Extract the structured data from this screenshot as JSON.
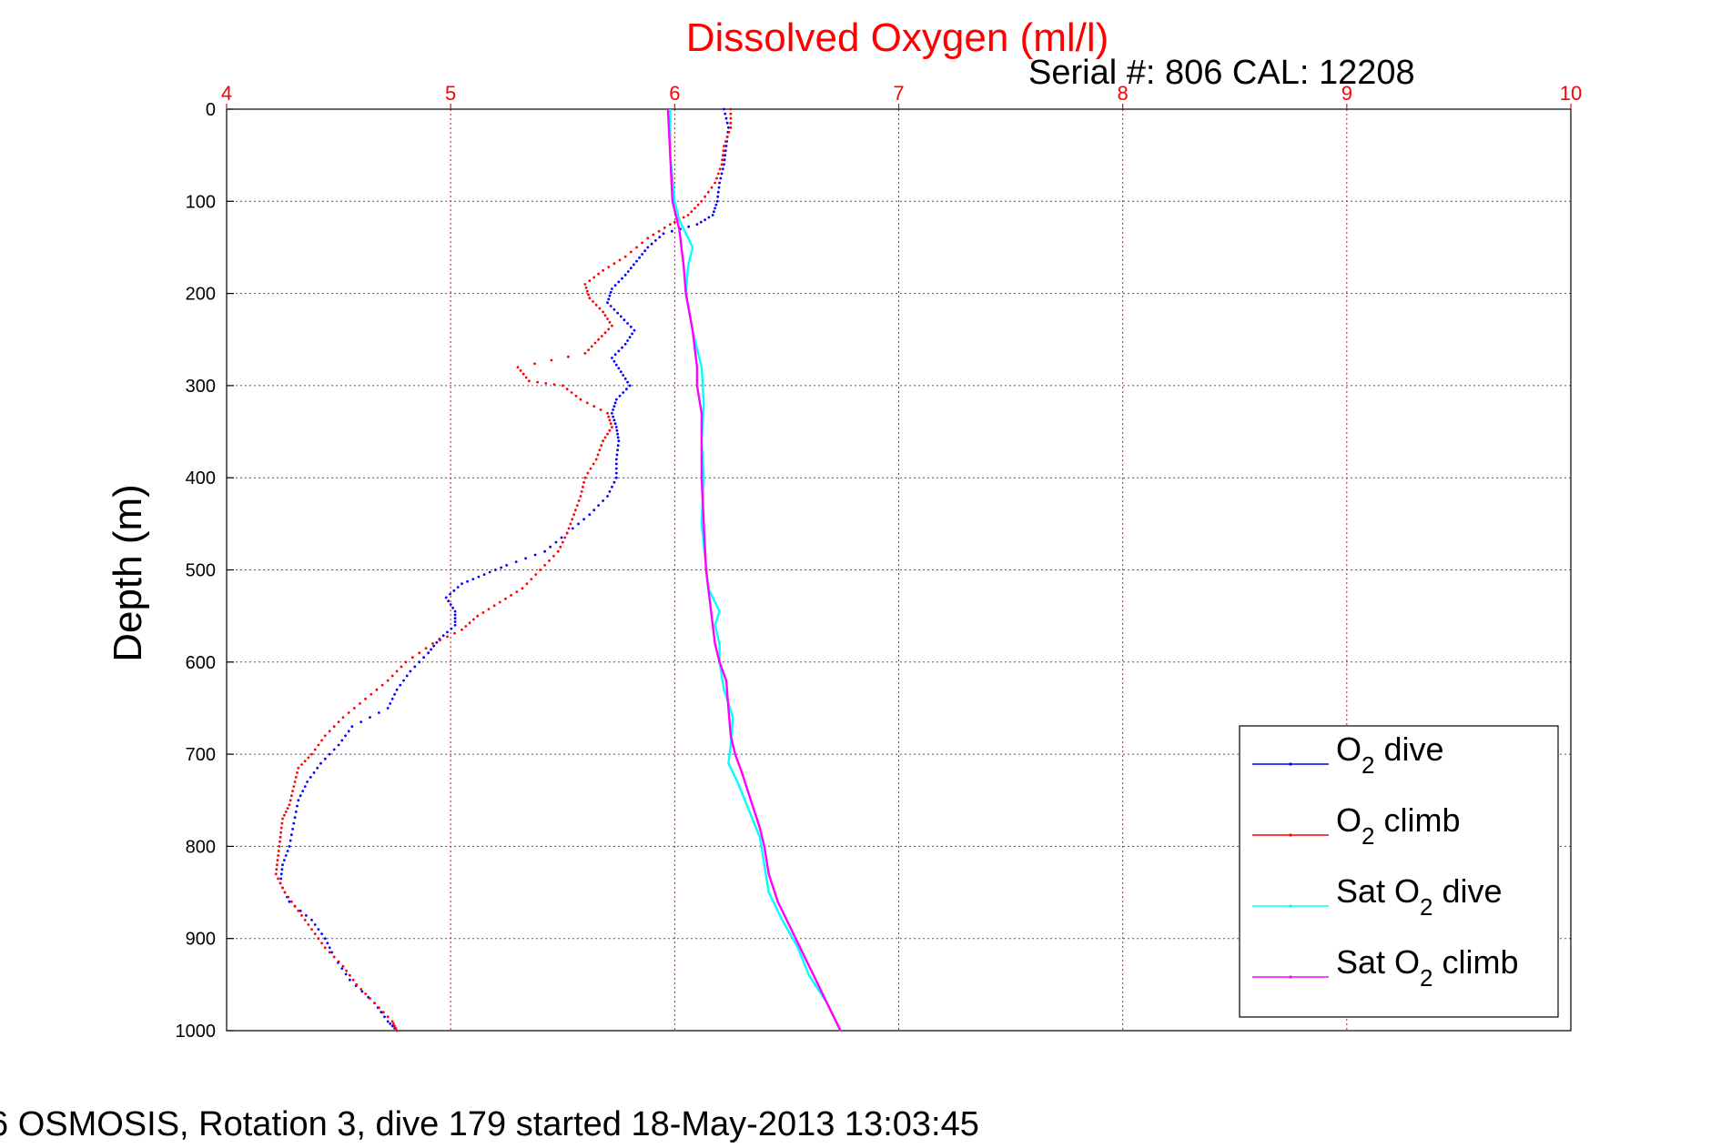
{
  "chart_data": {
    "type": "scatter",
    "title": "Dissolved Oxygen (ml/l)",
    "serial_label": "Serial #: 806  CAL: 12208",
    "caption": "6 OSMOSIS, Rotation 3, dive 179 started 18-May-2013 13:03:45",
    "ylabel": "Depth (m)",
    "xlabel": "",
    "xlim": [
      4,
      10
    ],
    "ylim": [
      0,
      1000
    ],
    "y_reversed": true,
    "x_axis_position": "top",
    "grid": true,
    "x_ticks": [
      "4",
      "5",
      "6",
      "7",
      "8",
      "9",
      "10"
    ],
    "y_ticks": [
      "0",
      "100",
      "200",
      "300",
      "400",
      "500",
      "600",
      "700",
      "800",
      "900",
      "1000"
    ],
    "legend_position": "bottom-right",
    "legend": [
      {
        "main": "O",
        "sub": "2",
        "rest": " dive",
        "color": "#0000ff"
      },
      {
        "main": "O",
        "sub": "2",
        "rest": " climb",
        "color": "#ff0000"
      },
      {
        "main": "Sat O",
        "sub": "2",
        "rest": " dive",
        "color": "#00ffff"
      },
      {
        "main": "Sat O",
        "sub": "2",
        "rest": " climb",
        "color": "#ff00ff"
      }
    ],
    "series": [
      {
        "name": "O2 dive",
        "color": "#0000ff",
        "style": "dots",
        "points": [
          [
            6.22,
            0
          ],
          [
            6.24,
            20
          ],
          [
            6.23,
            40
          ],
          [
            6.22,
            60
          ],
          [
            6.2,
            80
          ],
          [
            6.19,
            100
          ],
          [
            6.17,
            115
          ],
          [
            6.1,
            125
          ],
          [
            5.95,
            135
          ],
          [
            5.88,
            150
          ],
          [
            5.83,
            165
          ],
          [
            5.78,
            180
          ],
          [
            5.72,
            195
          ],
          [
            5.7,
            210
          ],
          [
            5.76,
            225
          ],
          [
            5.82,
            240
          ],
          [
            5.78,
            255
          ],
          [
            5.72,
            270
          ],
          [
            5.76,
            285
          ],
          [
            5.8,
            300
          ],
          [
            5.74,
            315
          ],
          [
            5.72,
            330
          ],
          [
            5.74,
            345
          ],
          [
            5.75,
            360
          ],
          [
            5.74,
            380
          ],
          [
            5.74,
            400
          ],
          [
            5.7,
            420
          ],
          [
            5.62,
            440
          ],
          [
            5.52,
            460
          ],
          [
            5.42,
            480
          ],
          [
            5.25,
            495
          ],
          [
            5.15,
            505
          ],
          [
            5.05,
            515
          ],
          [
            4.98,
            530
          ],
          [
            5.02,
            545
          ],
          [
            5.02,
            560
          ],
          [
            4.95,
            575
          ],
          [
            4.9,
            590
          ],
          [
            4.82,
            610
          ],
          [
            4.76,
            630
          ],
          [
            4.72,
            650
          ],
          [
            4.56,
            670
          ],
          [
            4.5,
            690
          ],
          [
            4.42,
            710
          ],
          [
            4.36,
            730
          ],
          [
            4.32,
            750
          ],
          [
            4.3,
            775
          ],
          [
            4.28,
            800
          ],
          [
            4.25,
            820
          ],
          [
            4.24,
            840
          ],
          [
            4.28,
            860
          ],
          [
            4.38,
            880
          ],
          [
            4.44,
            900
          ],
          [
            4.48,
            920
          ],
          [
            4.55,
            945
          ],
          [
            4.66,
            970
          ],
          [
            4.72,
            990
          ],
          [
            4.76,
            1000
          ]
        ]
      },
      {
        "name": "O2 climb",
        "color": "#ff0000",
        "style": "dots",
        "points": [
          [
            6.25,
            0
          ],
          [
            6.25,
            20
          ],
          [
            6.22,
            40
          ],
          [
            6.21,
            60
          ],
          [
            6.18,
            80
          ],
          [
            6.12,
            100
          ],
          [
            6.06,
            115
          ],
          [
            5.98,
            125
          ],
          [
            5.88,
            140
          ],
          [
            5.78,
            160
          ],
          [
            5.68,
            175
          ],
          [
            5.6,
            190
          ],
          [
            5.62,
            205
          ],
          [
            5.68,
            220
          ],
          [
            5.72,
            235
          ],
          [
            5.66,
            250
          ],
          [
            5.6,
            265
          ],
          [
            5.3,
            280
          ],
          [
            5.35,
            295
          ],
          [
            5.5,
            300
          ],
          [
            5.58,
            315
          ],
          [
            5.7,
            330
          ],
          [
            5.72,
            345
          ],
          [
            5.68,
            360
          ],
          [
            5.65,
            380
          ],
          [
            5.6,
            400
          ],
          [
            5.58,
            420
          ],
          [
            5.55,
            440
          ],
          [
            5.52,
            460
          ],
          [
            5.48,
            480
          ],
          [
            5.4,
            500
          ],
          [
            5.32,
            520
          ],
          [
            5.22,
            535
          ],
          [
            5.12,
            550
          ],
          [
            5.05,
            565
          ],
          [
            4.92,
            580
          ],
          [
            4.8,
            600
          ],
          [
            4.72,
            620
          ],
          [
            4.62,
            640
          ],
          [
            4.52,
            660
          ],
          [
            4.44,
            680
          ],
          [
            4.38,
            700
          ],
          [
            4.32,
            715
          ],
          [
            4.3,
            735
          ],
          [
            4.28,
            755
          ],
          [
            4.25,
            770
          ],
          [
            4.24,
            790
          ],
          [
            4.23,
            810
          ],
          [
            4.22,
            830
          ],
          [
            4.26,
            850
          ],
          [
            4.32,
            870
          ],
          [
            4.38,
            890
          ],
          [
            4.44,
            910
          ],
          [
            4.52,
            930
          ],
          [
            4.58,
            950
          ],
          [
            4.66,
            970
          ],
          [
            4.74,
            990
          ],
          [
            4.76,
            1000
          ]
        ]
      },
      {
        "name": "Sat O2 dive",
        "color": "#00ffff",
        "style": "line",
        "points": [
          [
            5.98,
            0
          ],
          [
            5.98,
            50
          ],
          [
            6.0,
            100
          ],
          [
            6.02,
            120
          ],
          [
            6.08,
            150
          ],
          [
            6.06,
            170
          ],
          [
            6.05,
            200
          ],
          [
            6.08,
            240
          ],
          [
            6.12,
            280
          ],
          [
            6.13,
            320
          ],
          [
            6.12,
            360
          ],
          [
            6.13,
            400
          ],
          [
            6.12,
            450
          ],
          [
            6.15,
            520
          ],
          [
            6.2,
            545
          ],
          [
            6.18,
            560
          ],
          [
            6.2,
            580
          ],
          [
            6.2,
            600
          ],
          [
            6.22,
            630
          ],
          [
            6.26,
            660
          ],
          [
            6.25,
            690
          ],
          [
            6.24,
            710
          ],
          [
            6.28,
            730
          ],
          [
            6.33,
            760
          ],
          [
            6.38,
            790
          ],
          [
            6.4,
            820
          ],
          [
            6.42,
            850
          ],
          [
            6.48,
            880
          ],
          [
            6.55,
            910
          ],
          [
            6.6,
            940
          ],
          [
            6.68,
            970
          ],
          [
            6.72,
            990
          ],
          [
            6.74,
            1000
          ]
        ]
      },
      {
        "name": "Sat O2 climb",
        "color": "#ff00ff",
        "style": "line",
        "points": [
          [
            5.97,
            0
          ],
          [
            5.98,
            50
          ],
          [
            5.99,
            100
          ],
          [
            6.02,
            130
          ],
          [
            6.04,
            170
          ],
          [
            6.05,
            200
          ],
          [
            6.08,
            240
          ],
          [
            6.1,
            280
          ],
          [
            6.1,
            300
          ],
          [
            6.12,
            330
          ],
          [
            6.12,
            400
          ],
          [
            6.13,
            450
          ],
          [
            6.14,
            500
          ],
          [
            6.16,
            540
          ],
          [
            6.18,
            580
          ],
          [
            6.2,
            600
          ],
          [
            6.23,
            620
          ],
          [
            6.24,
            650
          ],
          [
            6.25,
            680
          ],
          [
            6.27,
            700
          ],
          [
            6.3,
            720
          ],
          [
            6.34,
            750
          ],
          [
            6.38,
            780
          ],
          [
            6.4,
            800
          ],
          [
            6.42,
            830
          ],
          [
            6.46,
            860
          ],
          [
            6.5,
            880
          ],
          [
            6.56,
            910
          ],
          [
            6.62,
            940
          ],
          [
            6.68,
            970
          ],
          [
            6.72,
            990
          ],
          [
            6.74,
            1000
          ]
        ]
      }
    ]
  }
}
